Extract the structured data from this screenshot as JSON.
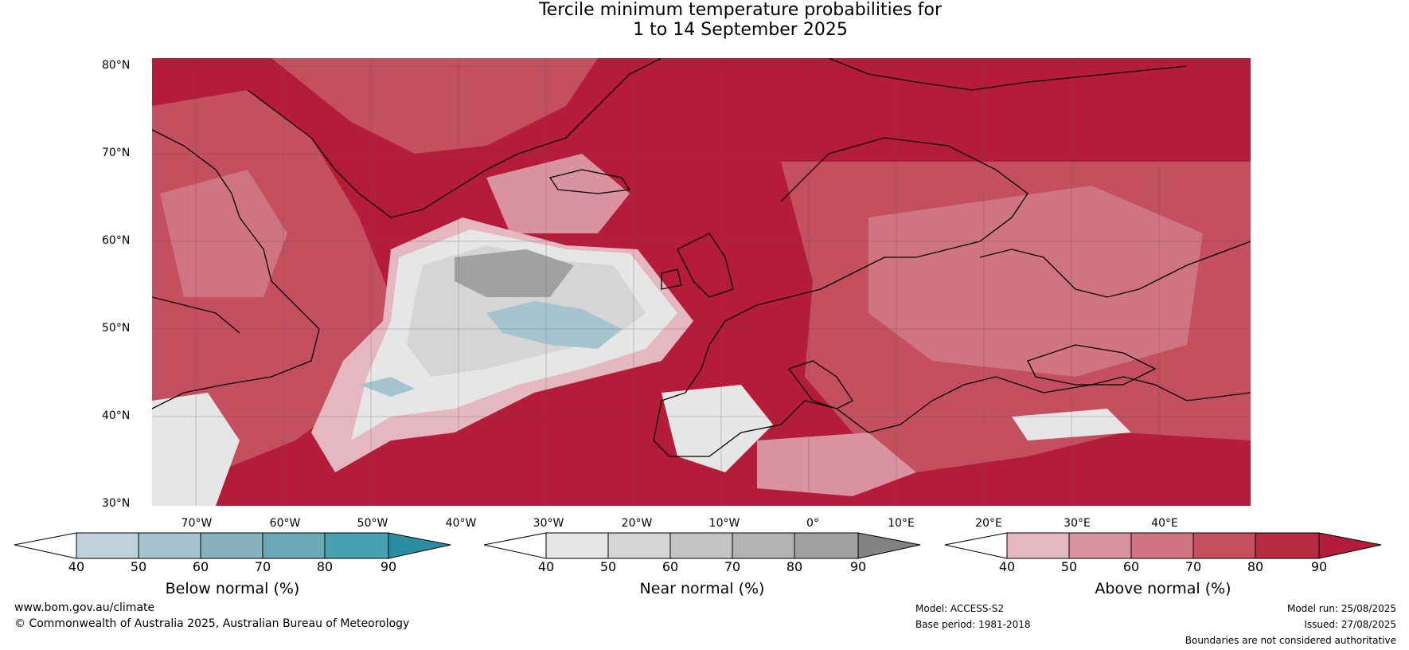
{
  "title": {
    "line1": "Tercile minimum temperature probabilities for",
    "line2": "1 to 14 September 2025"
  },
  "map": {
    "lat_labels": [
      "80°N",
      "70°N",
      "60°N",
      "50°N",
      "40°N",
      "30°N"
    ],
    "lon_labels": [
      "70°W",
      "60°W",
      "50°W",
      "40°W",
      "30°W",
      "20°W",
      "10°W",
      "0°",
      "10°E",
      "20°E",
      "30°E",
      "40°E"
    ],
    "lat_range": [
      30,
      80
    ],
    "lon_range": [
      -75,
      50
    ]
  },
  "colorbars": [
    {
      "label": "Below normal (%)",
      "ticks": [
        "40",
        "50",
        "60",
        "70",
        "80",
        "90"
      ],
      "colors": [
        "#bfd3da",
        "#a6c4cd",
        "#88b1c0",
        "#6aa8b7",
        "#48a1b1",
        "#2a8ea2"
      ]
    },
    {
      "label": "Near normal (%)",
      "ticks": [
        "40",
        "50",
        "60",
        "70",
        "80",
        "90"
      ],
      "colors": [
        "#e6e6e6",
        "#d5d5d5",
        "#c4c4c4",
        "#b3b3b3",
        "#a1a1a1",
        "#838383"
      ]
    },
    {
      "label": "Above normal (%)",
      "ticks": [
        "40",
        "50",
        "60",
        "70",
        "80",
        "90"
      ],
      "colors": [
        "#e5b8c1",
        "#d9929f",
        "#cf7480",
        "#c4505f",
        "#b72b42",
        "#b51c39"
      ]
    }
  ],
  "footer": {
    "website": "www.bom.gov.au/climate",
    "copyright": "© Commonwealth of Australia 2025, Australian Bureau of Meteorology",
    "model": "Model: ACCESS-S2",
    "base_period": "Base period: 1981-2018",
    "model_run": "Model run: 25/08/2025",
    "issued": "Issued: 27/08/2025",
    "disclaimer": "Boundaries are not considered authoritative"
  }
}
